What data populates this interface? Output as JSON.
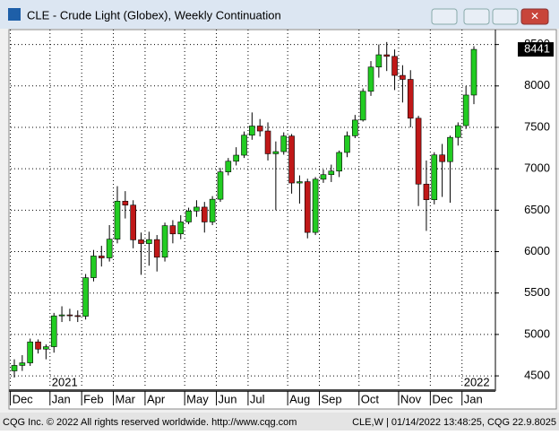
{
  "chart_data": {
    "type": "candlestick",
    "title": "CLE - Crude Light (Globex), Weekly Continuation",
    "categories": [
      "Dec",
      null,
      null,
      null,
      null,
      "Jan",
      null,
      null,
      null,
      "Feb",
      null,
      null,
      null,
      "Mar",
      null,
      null,
      null,
      "Apr",
      null,
      null,
      null,
      null,
      "May",
      null,
      null,
      null,
      "Jun",
      null,
      null,
      null,
      "Jul",
      null,
      null,
      null,
      null,
      "Aug",
      null,
      null,
      null,
      "Sep",
      null,
      null,
      null,
      null,
      "Oct",
      null,
      null,
      null,
      null,
      "Nov",
      null,
      null,
      null,
      "Dec",
      null,
      null,
      null,
      "Jan",
      null
    ],
    "years": [
      null,
      null,
      null,
      null,
      null,
      "2021",
      null,
      null,
      null,
      null,
      null,
      null,
      null,
      null,
      null,
      null,
      null,
      null,
      null,
      null,
      null,
      null,
      null,
      null,
      null,
      null,
      null,
      null,
      null,
      null,
      null,
      null,
      null,
      null,
      null,
      null,
      null,
      null,
      null,
      null,
      null,
      null,
      null,
      null,
      null,
      null,
      null,
      null,
      null,
      null,
      null,
      null,
      null,
      null,
      null,
      null,
      null,
      "2022",
      null
    ],
    "open": [
      4560,
      4626,
      4657,
      4910,
      4823,
      4852,
      5224,
      5236,
      5227,
      5220,
      5685,
      5947,
      5924,
      6150,
      6609,
      6561,
      6142,
      6097,
      6145,
      5932,
      6313,
      6214,
      6358,
      6490,
      6537,
      6358,
      6632,
      6962,
      7091,
      7164,
      7405,
      7516,
      7456,
      7181,
      7207,
      7395,
      6828,
      6844,
      6232,
      6874,
      6929,
      6972,
      7197,
      7398,
      7588,
      7935,
      8228,
      8376,
      8357,
      8127,
      8079,
      7610,
      6815,
      6626,
      7167,
      7086,
      7379,
      7521,
      7890
    ],
    "high": [
      4700,
      4750,
      4950,
      4940,
      4880,
      5260,
      5340,
      5310,
      5290,
      5730,
      6020,
      6070,
      6320,
      6790,
      6730,
      6620,
      6230,
      6240,
      6200,
      6350,
      6380,
      6440,
      6530,
      6620,
      6600,
      6670,
      7010,
      7130,
      7260,
      7450,
      7680,
      7600,
      7560,
      7330,
      7440,
      7420,
      6920,
      6880,
      6900,
      6990,
      7050,
      7220,
      7450,
      7650,
      7970,
      8300,
      8500,
      8530,
      8440,
      8250,
      8190,
      7640,
      7100,
      7200,
      7300,
      7400,
      7560,
      8000,
      8480
    ],
    "low": [
      4480,
      4560,
      4620,
      4770,
      4700,
      4780,
      5150,
      5160,
      5150,
      5180,
      5640,
      5820,
      5880,
      6100,
      6400,
      6040,
      5720,
      5830,
      5760,
      5880,
      6100,
      6150,
      6330,
      6420,
      6230,
      6320,
      6600,
      6920,
      7040,
      7130,
      7350,
      7390,
      7100,
      6500,
      7170,
      6700,
      6580,
      6160,
      6200,
      6830,
      6840,
      6900,
      7140,
      7370,
      7570,
      7880,
      8100,
      8180,
      7950,
      7800,
      7500,
      6550,
      6250,
      6570,
      6660,
      6590,
      7280,
      7480,
      7780
    ],
    "close": [
      4626,
      4657,
      4910,
      4823,
      4852,
      5224,
      5236,
      5227,
      5220,
      5685,
      5947,
      5924,
      6150,
      6609,
      6561,
      6142,
      6097,
      6145,
      5932,
      6313,
      6214,
      6358,
      6490,
      6537,
      6358,
      6632,
      6962,
      7091,
      7164,
      7405,
      7516,
      7456,
      7181,
      7207,
      7395,
      6828,
      6844,
      6232,
      6874,
      6929,
      6972,
      7197,
      7398,
      7588,
      7935,
      8228,
      8376,
      8357,
      8127,
      8079,
      7610,
      6815,
      6626,
      7167,
      7086,
      7379,
      7521,
      7890,
      8441
    ],
    "up_color": "#22cc22",
    "down_color": "#c01818",
    "ylim": [
      4360,
      8680
    ],
    "yticks": [
      4500,
      5000,
      5500,
      6000,
      6500,
      7000,
      7500,
      8000,
      8500
    ],
    "grid": true
  },
  "footer": {
    "left": "CQG Inc. © 2022 All rights reserved worldwide. http://www.cqg.com",
    "right": "CLE,W | 01/14/2022 13:48:25, CQG 22.9.8025"
  }
}
